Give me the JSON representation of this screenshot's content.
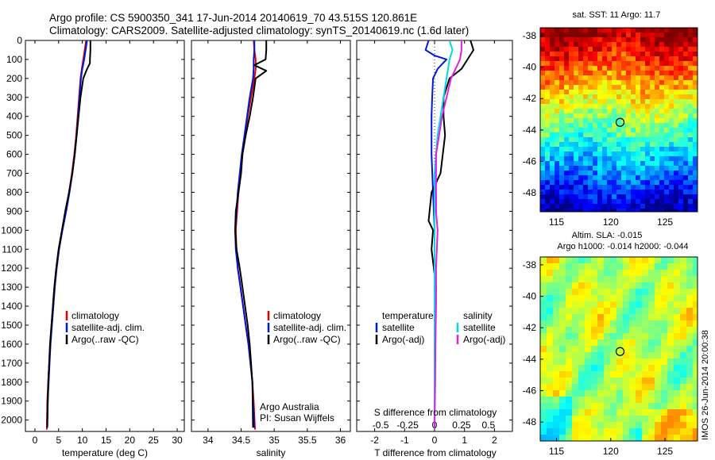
{
  "header": {
    "line1": "Argo profile: CS 5900350_341 17-Jun-2014 20140619_70 43.515S 120.861E",
    "line2": "Climatology: CARS2009. Satellite-adjusted climatology: synTS_20140619.nc (1.6d later)"
  },
  "side_label": "IMOS 26-Jun-2014 20:00:38",
  "colors": {
    "climatology": "#e00000",
    "satellite": "#0018d8",
    "argo": "#000000",
    "sal_satellite": "#00d8e8",
    "sal_argo": "#e020e0"
  },
  "chart_data": [
    {
      "type": "line",
      "panel": "temperature",
      "xlabel": "temperature (deg C)",
      "ylabel": "",
      "xlim": [
        -2,
        31.5
      ],
      "ylim": [
        2060,
        0
      ],
      "xticks": [
        "0",
        "5",
        "10",
        "15",
        "20",
        "25",
        "30"
      ],
      "xtick_values": [
        0,
        5,
        10,
        15,
        20,
        25,
        30
      ],
      "yticks": [
        "0",
        "100",
        "200",
        "300",
        "400",
        "500",
        "600",
        "700",
        "800",
        "900",
        "1000",
        "1100",
        "1200",
        "1300",
        "1400",
        "1500",
        "1600",
        "1700",
        "1800",
        "1900",
        "2000"
      ],
      "ytick_values": [
        0,
        100,
        200,
        300,
        400,
        500,
        600,
        700,
        800,
        900,
        1000,
        1100,
        1200,
        1300,
        1400,
        1500,
        1600,
        1700,
        1800,
        1900,
        2000
      ],
      "legend": [
        "climatology",
        "satellite-adj. clim.",
        "Argo(..raw -QC)"
      ],
      "legend_position": "lower-right",
      "series": [
        {
          "name": "climatology",
          "color": "#e00000",
          "x": [
            10.8,
            10.5,
            10.2,
            9.9,
            9.6,
            9.3,
            9.0,
            8.7,
            8.3,
            7.8,
            7.2,
            6.5,
            5.7,
            5.0,
            4.5,
            4.1,
            3.8,
            3.5,
            3.2,
            3.0,
            2.8,
            2.6,
            2.5
          ],
          "y": [
            0,
            50,
            100,
            150,
            200,
            300,
            400,
            500,
            600,
            700,
            800,
            900,
            1000,
            1100,
            1200,
            1300,
            1400,
            1500,
            1600,
            1700,
            1800,
            1900,
            2050
          ]
        },
        {
          "name": "satellite-adj. clim.",
          "color": "#0018d8",
          "x": [
            11.0,
            10.7,
            10.4,
            10.0,
            9.7,
            9.4,
            9.1,
            8.8,
            8.4,
            7.9,
            7.3,
            6.6,
            5.8,
            5.1,
            4.6,
            4.2,
            3.9,
            3.6,
            3.3,
            3.1,
            2.9,
            2.7,
            2.6
          ],
          "y": [
            0,
            50,
            100,
            150,
            200,
            300,
            400,
            500,
            600,
            700,
            800,
            900,
            1000,
            1100,
            1200,
            1300,
            1400,
            1500,
            1600,
            1700,
            1800,
            1900,
            2040
          ]
        },
        {
          "name": "Argo(..raw -QC)",
          "color": "#000000",
          "x": [
            11.7,
            11.7,
            11.6,
            11.6,
            11.0,
            10.2,
            9.6,
            9.2,
            8.8,
            8.4,
            7.9,
            7.2,
            6.4,
            5.7,
            5.0,
            4.5,
            4.1,
            3.8,
            3.5,
            3.2,
            3.0,
            2.8,
            2.6
          ],
          "y": [
            0,
            50,
            100,
            120,
            150,
            200,
            300,
            400,
            500,
            600,
            700,
            800,
            900,
            1000,
            1100,
            1200,
            1300,
            1400,
            1500,
            1600,
            1700,
            1800,
            2040
          ]
        }
      ]
    },
    {
      "type": "line",
      "panel": "salinity",
      "xlabel": "salinity",
      "ylabel": "",
      "xlim": [
        33.75,
        36.15
      ],
      "ylim": [
        2060,
        0
      ],
      "xticks": [
        "34",
        "34.5",
        "35",
        "35.5",
        "36"
      ],
      "xtick_values": [
        34,
        34.5,
        35,
        35.5,
        36
      ],
      "legend": [
        "climatology",
        "satellite-adj. clim.",
        "Argo(..raw -QC)"
      ],
      "legend_position": "lower-right",
      "annotation": [
        "Argo Australia",
        "PI: Susan Wijffels"
      ],
      "series": [
        {
          "name": "climatology",
          "color": "#e00000",
          "x": [
            34.69,
            34.7,
            34.72,
            34.72,
            34.7,
            34.65,
            34.6,
            34.56,
            34.52,
            34.49,
            34.46,
            34.44,
            34.42,
            34.43,
            34.45,
            34.49,
            34.53,
            34.57,
            34.61,
            34.64,
            34.67,
            34.69,
            34.71
          ],
          "y": [
            0,
            50,
            100,
            150,
            200,
            300,
            400,
            500,
            600,
            700,
            800,
            900,
            1000,
            1100,
            1200,
            1300,
            1400,
            1500,
            1600,
            1700,
            1800,
            1900,
            2050
          ]
        },
        {
          "name": "satellite-adj. clim.",
          "color": "#0018d8",
          "x": [
            34.7,
            34.7,
            34.69,
            34.69,
            34.68,
            34.63,
            34.59,
            34.55,
            34.51,
            34.48,
            34.45,
            34.43,
            34.41,
            34.42,
            34.45,
            34.49,
            34.53,
            34.57,
            34.61,
            34.64,
            34.67,
            34.68,
            34.7
          ],
          "y": [
            0,
            50,
            100,
            150,
            200,
            300,
            400,
            500,
            600,
            700,
            800,
            900,
            1000,
            1100,
            1200,
            1300,
            1400,
            1500,
            1600,
            1700,
            1800,
            1900,
            2040
          ]
        },
        {
          "name": "Argo(..raw -QC)",
          "color": "#000000",
          "x": [
            34.88,
            34.88,
            34.87,
            34.7,
            34.88,
            34.72,
            34.68,
            34.63,
            34.57,
            34.52,
            34.5,
            34.46,
            34.42,
            34.41,
            34.43,
            34.48,
            34.52,
            34.56,
            34.6,
            34.63,
            34.65,
            34.67,
            34.68
          ],
          "y": [
            0,
            50,
            100,
            130,
            160,
            200,
            300,
            400,
            500,
            600,
            700,
            800,
            900,
            1000,
            1100,
            1200,
            1300,
            1400,
            1500,
            1600,
            1700,
            1800,
            2040
          ]
        }
      ]
    },
    {
      "type": "line",
      "panel": "difference",
      "xlabel": "T difference from climatology",
      "xlabel_top": "S difference from climatology",
      "xlim": [
        -2.6,
        2.6
      ],
      "ylim": [
        2060,
        0
      ],
      "xticks": [
        "-2",
        "-1",
        "0",
        "1",
        "2"
      ],
      "xtick_values": [
        -2,
        -1,
        0,
        1,
        2
      ],
      "s_xticks": [
        "-0.5",
        "-0.25",
        "0",
        "0.25",
        "0.5"
      ],
      "s_xtick_values": [
        -1.8,
        -0.9,
        0,
        0.9,
        1.8
      ],
      "legend": {
        "temperature_title": "temperature",
        "salinity_title": "salinity",
        "temperature": [
          "satellite",
          "Argo(-adj)"
        ],
        "salinity": [
          "satellite",
          "Argo(-adj)"
        ]
      },
      "legend_position": "lower-center",
      "series": [
        {
          "name": "temperature satellite",
          "color": "#0018d8",
          "x": [
            -0.2,
            -0.3,
            0.0,
            0.4,
            0.1,
            -0.05,
            -0.08,
            -0.1,
            -0.1,
            -0.1,
            -0.05,
            0.0,
            0.0,
            0.0,
            0.0,
            0.0,
            0.0,
            0.0
          ],
          "y": [
            0,
            50,
            80,
            100,
            150,
            200,
            300,
            400,
            500,
            600,
            800,
            1000,
            1200,
            1400,
            1600,
            1800,
            1900,
            2040
          ]
        },
        {
          "name": "temperature Argo(-adj)",
          "color": "#000000",
          "x": [
            1.2,
            1.3,
            1.1,
            0.9,
            0.5,
            0.3,
            0.3,
            0.35,
            0.2,
            -0.1,
            -0.2,
            -0.05,
            -0.1,
            0.05,
            0.0,
            0.0,
            0.0,
            0.0
          ],
          "y": [
            0,
            50,
            100,
            150,
            200,
            300,
            400,
            500,
            700,
            800,
            950,
            1000,
            1100,
            1300,
            1500,
            1700,
            1900,
            2040
          ]
        },
        {
          "name": "salinity satellite",
          "color": "#00d8e8",
          "x": [
            0.5,
            0.6,
            0.5,
            0.45,
            0.4,
            0.3,
            0.2,
            0.1,
            0.05,
            0.0,
            0.0,
            0.0,
            0.0,
            0.0,
            0.0,
            0.0,
            0.0
          ],
          "y": [
            0,
            50,
            100,
            150,
            200,
            300,
            400,
            500,
            600,
            700,
            800,
            1000,
            1200,
            1400,
            1600,
            1800,
            2040
          ]
        },
        {
          "name": "salinity Argo(-adj)",
          "color": "#e020e0",
          "x": [
            0.9,
            0.9,
            0.85,
            0.7,
            0.55,
            0.4,
            0.25,
            0.15,
            0.05,
            0.05,
            0.05,
            0.1,
            0.05,
            0.05,
            0.03,
            0.02,
            0.0
          ],
          "y": [
            0,
            50,
            100,
            150,
            200,
            300,
            400,
            500,
            600,
            700,
            900,
            1000,
            1200,
            1400,
            1600,
            1800,
            2040
          ]
        }
      ]
    },
    {
      "type": "heatmap",
      "panel": "sst-map",
      "title": "sat. SST: 11 Argo: 11.7",
      "xlim": [
        113.5,
        128
      ],
      "ylim": [
        -49.2,
        -37.5
      ],
      "xticks": [
        "115",
        "120",
        "125"
      ],
      "xtick_values": [
        115,
        120,
        125
      ],
      "yticks": [
        "-38",
        "-40",
        "-42",
        "-44",
        "-46",
        "-48"
      ],
      "ytick_values": [
        -38,
        -40,
        -42,
        -44,
        -46,
        -48
      ],
      "marker": {
        "lon": 120.861,
        "lat": -43.515
      }
    },
    {
      "type": "heatmap",
      "panel": "sla-map",
      "title": "Altim. SLA: -0.015",
      "subtitle": "Argo h1000: -0.014 h2000: -0.044",
      "xlim": [
        113.5,
        128
      ],
      "ylim": [
        -49.2,
        -37.5
      ],
      "xticks": [
        "115",
        "120",
        "125"
      ],
      "xtick_values": [
        115,
        120,
        125
      ],
      "yticks": [
        "-38",
        "-40",
        "-42",
        "-44",
        "-46",
        "-48"
      ],
      "ytick_values": [
        -38,
        -40,
        -42,
        -44,
        -46,
        -48
      ],
      "marker": {
        "lon": 120.861,
        "lat": -43.515
      }
    }
  ]
}
